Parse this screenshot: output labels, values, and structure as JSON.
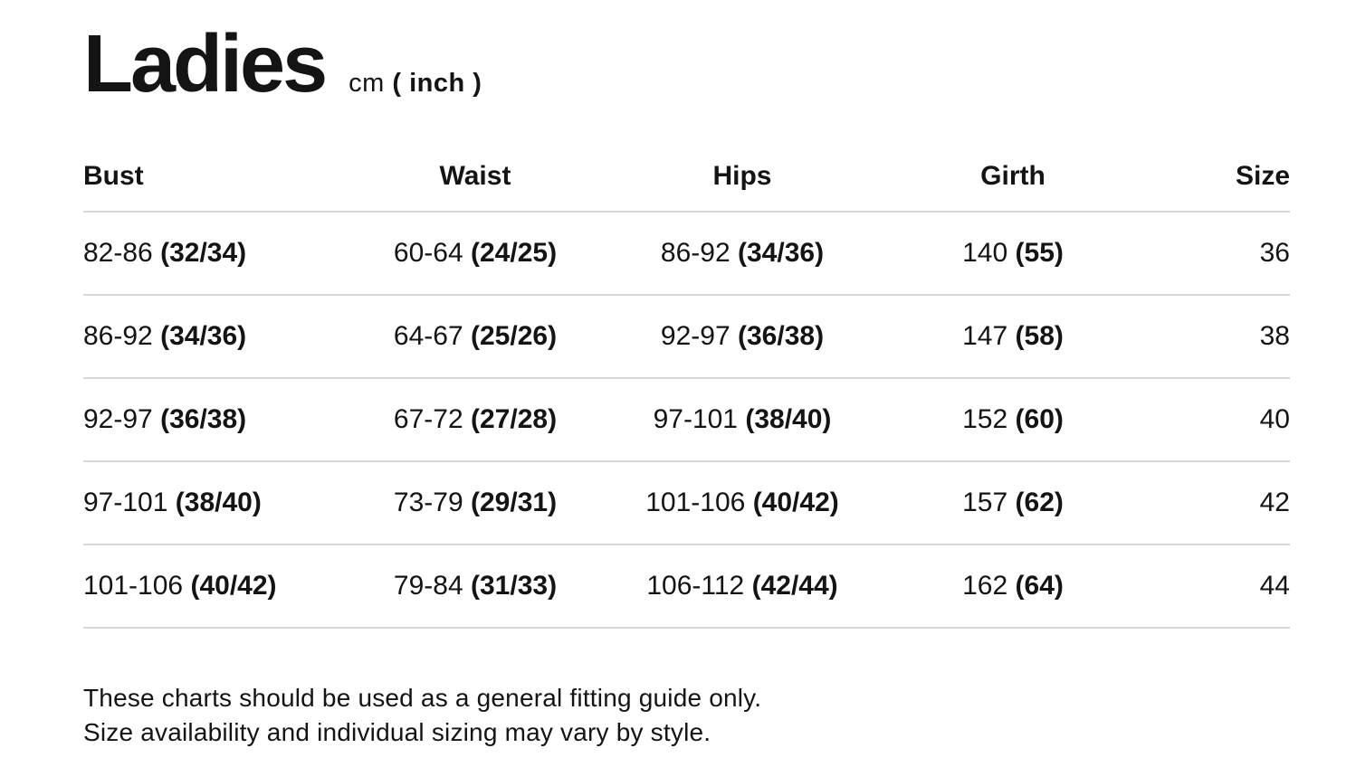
{
  "header": {
    "title": "Ladies",
    "unit_regular": "cm",
    "unit_bold": "( inch )"
  },
  "table": {
    "columns": [
      "Bust",
      "Waist",
      "Hips",
      "Girth",
      "Size"
    ],
    "rows": [
      {
        "bust_cm": "82-86",
        "bust_in": "(32/34)",
        "waist_cm": "60-64",
        "waist_in": "(24/25)",
        "hips_cm": "86-92",
        "hips_in": "(34/36)",
        "girth_cm": "140",
        "girth_in": "(55)",
        "size": "36"
      },
      {
        "bust_cm": "86-92",
        "bust_in": "(34/36)",
        "waist_cm": "64-67",
        "waist_in": "(25/26)",
        "hips_cm": "92-97",
        "hips_in": "(36/38)",
        "girth_cm": "147",
        "girth_in": "(58)",
        "size": "38"
      },
      {
        "bust_cm": "92-97",
        "bust_in": "(36/38)",
        "waist_cm": "67-72",
        "waist_in": "(27/28)",
        "hips_cm": "97-101",
        "hips_in": "(38/40)",
        "girth_cm": "152",
        "girth_in": "(60)",
        "size": "40"
      },
      {
        "bust_cm": "97-101",
        "bust_in": "(38/40)",
        "waist_cm": "73-79",
        "waist_in": "(29/31)",
        "hips_cm": "101-106",
        "hips_in": "(40/42)",
        "girth_cm": "157",
        "girth_in": "(62)",
        "size": "42"
      },
      {
        "bust_cm": "101-106",
        "bust_in": "(40/42)",
        "waist_cm": "79-84",
        "waist_in": "(31/33)",
        "hips_cm": "106-112",
        "hips_in": "(42/44)",
        "girth_cm": "162",
        "girth_in": "(64)",
        "size": "44"
      }
    ]
  },
  "footnote": {
    "line1": "These charts should be used as a general fitting guide only.",
    "line2": "Size availability and individual sizing may vary by style."
  },
  "colors": {
    "text": "#141414",
    "divider": "#d7d7d7",
    "background": "#ffffff"
  },
  "chart_data": {
    "type": "table",
    "title": "Ladies cm (inch)",
    "columns": [
      "Bust",
      "Waist",
      "Hips",
      "Girth",
      "Size"
    ],
    "rows": [
      [
        "82-86 (32/34)",
        "60-64 (24/25)",
        "86-92 (34/36)",
        "140 (55)",
        "36"
      ],
      [
        "86-92 (34/36)",
        "64-67 (25/26)",
        "92-97 (36/38)",
        "147 (58)",
        "38"
      ],
      [
        "92-97 (36/38)",
        "67-72 (27/28)",
        "97-101 (38/40)",
        "152 (60)",
        "40"
      ],
      [
        "97-101 (38/40)",
        "73-79 (29/31)",
        "101-106 (40/42)",
        "157 (62)",
        "42"
      ],
      [
        "101-106 (40/42)",
        "79-84 (31/33)",
        "106-112 (42/44)",
        "162 (64)",
        "44"
      ]
    ]
  }
}
